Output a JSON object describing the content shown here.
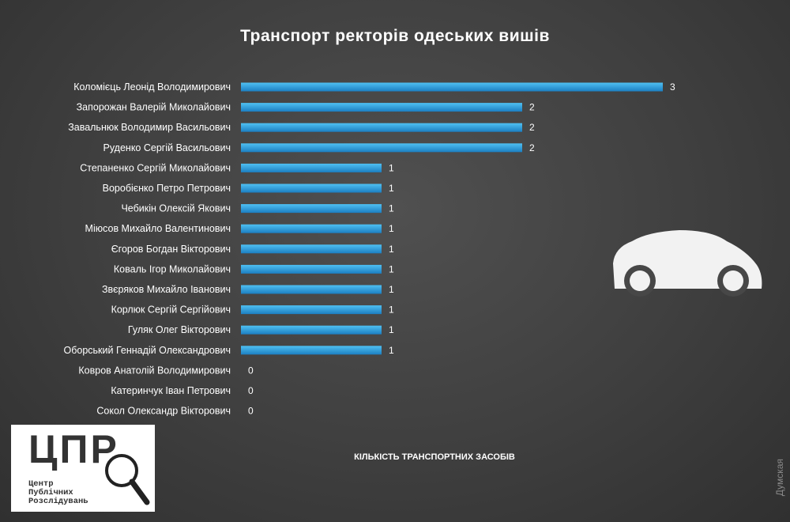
{
  "chart_data": {
    "type": "bar",
    "orientation": "horizontal",
    "title": "Транспорт ректорів одеських вишів",
    "xlabel": "КІЛЬКІСТЬ ТРАНСПОРТНИХ ЗАСОБІВ",
    "ylabel": "",
    "xlim": [
      0,
      3
    ],
    "grid": false,
    "categories": [
      "Коломієць Леонід Володимирович",
      "Запорожан Валерій Миколайович",
      "Завальнюк Володимир Васильович",
      "Руденко Сергій Васильович",
      "Степаненко Сергій Миколайович",
      "Воробієнко Петро Петрович",
      "Чебикін Олексій Якович",
      "Міюсов Михайло Валентинович",
      "Єгоров Богдан Вікторович",
      "Коваль Ігор Миколайович",
      "Звєряков Михайло Іванович",
      "Корлюк Сергій Сергійович",
      "Гуляк Олег Вікторович",
      "Оборський Геннадій Олександрович",
      "Ковров Анатолій Володимирович",
      "Катеринчук Іван Петрович",
      "Сокол Олександр Вікторович"
    ],
    "values": [
      3,
      2,
      2,
      2,
      1,
      1,
      1,
      1,
      1,
      1,
      1,
      1,
      1,
      1,
      0,
      0,
      0
    ],
    "bar_color": "#2b9fdf"
  },
  "logo": {
    "letters": "ЦПР",
    "subtitle": [
      "Центр",
      "Публічних",
      "Розслідувань"
    ]
  },
  "watermark": "Думская",
  "icons": [
    "car-icon",
    "magnifier-icon"
  ]
}
